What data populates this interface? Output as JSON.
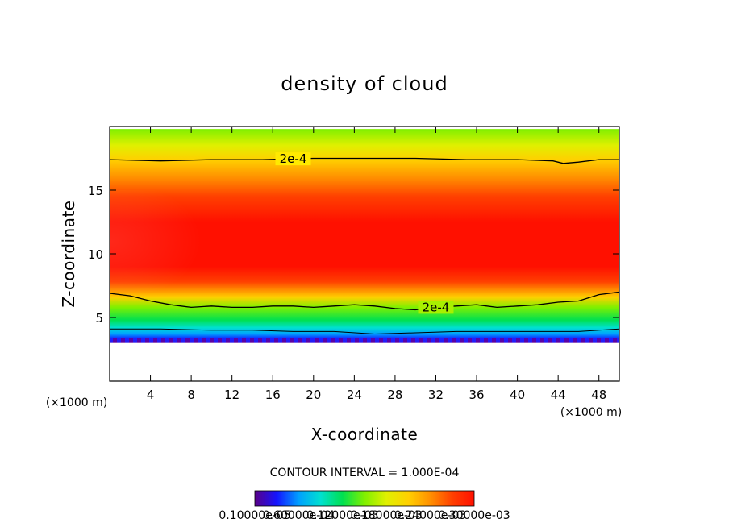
{
  "chart_data": {
    "type": "heatmap",
    "title": "density of cloud",
    "xlabel": "X-coordinate",
    "ylabel": "Z-coordinate",
    "x_unit": "(×1000 m)",
    "y_unit": "(×1000 m)",
    "xlim": [
      0,
      50
    ],
    "ylim": [
      0,
      20
    ],
    "x_ticks": [
      4,
      8,
      12,
      16,
      20,
      24,
      28,
      32,
      36,
      40,
      44,
      48
    ],
    "x_tick_labels": [
      "4",
      "8",
      "12",
      "16",
      "20",
      "24",
      "28",
      "32",
      "36",
      "40",
      "44",
      "48"
    ],
    "y_ticks": [
      5,
      10,
      15
    ],
    "y_tick_labels": [
      "5",
      "10",
      "15"
    ],
    "colormap": [
      "#5a0088",
      "#1414ff",
      "#00a0ff",
      "#00e0d0",
      "#00e050",
      "#80f000",
      "#e0f000",
      "#ffd000",
      "#ff9000",
      "#ff4000",
      "#ff1000"
    ],
    "contour_level": "2e-4",
    "contour_label_upper": "2e-4",
    "contour_label_lower": "2e-4",
    "contour_upper_z": [
      [
        0,
        17.4
      ],
      [
        5,
        17.3
      ],
      [
        10,
        17.4
      ],
      [
        15,
        17.4
      ],
      [
        20,
        17.5
      ],
      [
        25,
        17.5
      ],
      [
        30,
        17.5
      ],
      [
        35,
        17.4
      ],
      [
        40,
        17.4
      ],
      [
        43.5,
        17.3
      ],
      [
        44.5,
        17.1
      ],
      [
        46,
        17.2
      ],
      [
        48,
        17.4
      ],
      [
        50,
        17.4
      ]
    ],
    "contour_lower_z": [
      [
        0,
        6.9
      ],
      [
        2,
        6.7
      ],
      [
        4,
        6.3
      ],
      [
        6,
        6.0
      ],
      [
        8,
        5.8
      ],
      [
        10,
        5.9
      ],
      [
        12,
        5.8
      ],
      [
        14,
        5.8
      ],
      [
        16,
        5.9
      ],
      [
        18,
        5.9
      ],
      [
        20,
        5.8
      ],
      [
        22,
        5.9
      ],
      [
        24,
        6.0
      ],
      [
        26,
        5.9
      ],
      [
        28,
        5.7
      ],
      [
        30,
        5.6
      ],
      [
        32,
        5.8
      ],
      [
        34,
        5.9
      ],
      [
        36,
        6.0
      ],
      [
        38,
        5.8
      ],
      [
        40,
        5.9
      ],
      [
        42,
        6.0
      ],
      [
        44,
        6.2
      ],
      [
        46,
        6.3
      ],
      [
        48,
        6.8
      ],
      [
        50,
        7.0
      ]
    ],
    "contour_base_z": [
      [
        0,
        4.1
      ],
      [
        5,
        4.1
      ],
      [
        10,
        4.0
      ],
      [
        14,
        4.0
      ],
      [
        18,
        3.9
      ],
      [
        22,
        3.9
      ],
      [
        26,
        3.7
      ],
      [
        30,
        3.8
      ],
      [
        34,
        3.9
      ],
      [
        38,
        3.9
      ],
      [
        42,
        3.9
      ],
      [
        46,
        3.9
      ],
      [
        50,
        4.1
      ]
    ],
    "cloud_base_z": 3.0,
    "cloud_top_z": 19.8,
    "core_center_z": 11.0,
    "contour_interval_label": "CONTOUR INTERVAL = 1.000E-04",
    "colorbar_labels": [
      "0.10000e-05",
      "0.60000e-04",
      "0.12000e-03",
      "0.18000e-03",
      "0.24000e-03",
      "0.30000e-03"
    ]
  }
}
